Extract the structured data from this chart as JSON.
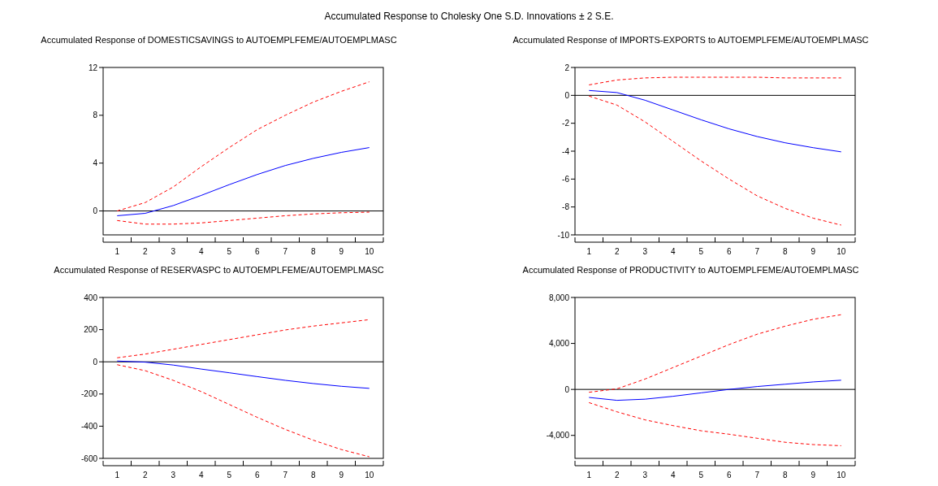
{
  "chart_data": [
    {
      "type": "line",
      "title": "Accumulated Response of DOMESTICSAVINGS to AUTOEMPLFEME/AUTOEMPLMASC",
      "annotations": [
        "Accumulated Response to Cholesky One S.D. Innovations ± 2 S.E."
      ],
      "categories": [
        "1",
        "2",
        "3",
        "4",
        "5",
        "6",
        "7",
        "8",
        "9",
        "10"
      ],
      "ylim": [
        -2,
        12
      ],
      "yticks": [
        0,
        4,
        8,
        12
      ],
      "grid": false,
      "ref_lines": [
        {
          "axis": "y",
          "value": 0,
          "color": "#000000"
        }
      ],
      "series": [
        {
          "color": "#0000ff",
          "line_style": "solid",
          "values": [
            -0.4,
            -0.2,
            0.45,
            1.3,
            2.2,
            3.05,
            3.8,
            4.4,
            4.9,
            5.3
          ]
        },
        {
          "color": "#ff0000",
          "line_style": "dashed",
          "values": [
            0,
            0.7,
            2.0,
            3.7,
            5.3,
            6.8,
            8.0,
            9.1,
            10.0,
            10.8
          ]
        },
        {
          "color": "#ff0000",
          "line_style": "dashed",
          "values": [
            -0.8,
            -1.1,
            -1.1,
            -1.0,
            -0.8,
            -0.6,
            -0.4,
            -0.25,
            -0.15,
            -0.1
          ]
        }
      ]
    },
    {
      "type": "line",
      "title": "Accumulated Response of IMPORTS-EXPORTS to AUTOEMPLFEME/AUTOEMPLMASC",
      "categories": [
        "1",
        "2",
        "3",
        "4",
        "5",
        "6",
        "7",
        "8",
        "9",
        "10"
      ],
      "ylim": [
        -10,
        2
      ],
      "yticks": [
        -10,
        -8,
        -6,
        -4,
        -2,
        0,
        2
      ],
      "grid": false,
      "ref_lines": [
        {
          "axis": "y",
          "value": 0,
          "color": "#000000"
        }
      ],
      "series": [
        {
          "color": "#0000ff",
          "line_style": "solid",
          "values": [
            0.35,
            0.2,
            -0.35,
            -1.05,
            -1.75,
            -2.4,
            -2.95,
            -3.4,
            -3.75,
            -4.05
          ]
        },
        {
          "color": "#ff0000",
          "line_style": "dashed",
          "values": [
            0.75,
            1.1,
            1.25,
            1.3,
            1.3,
            1.3,
            1.3,
            1.25,
            1.25,
            1.25
          ]
        },
        {
          "color": "#ff0000",
          "line_style": "dashed",
          "values": [
            -0.05,
            -0.7,
            -1.9,
            -3.3,
            -4.7,
            -6.0,
            -7.2,
            -8.1,
            -8.8,
            -9.3
          ]
        }
      ]
    },
    {
      "type": "line",
      "title": "Accumulated Response of RESERVASPC to AUTOEMPLFEME/AUTOEMPLMASC",
      "categories": [
        "1",
        "2",
        "3",
        "4",
        "5",
        "6",
        "7",
        "8",
        "9",
        "10"
      ],
      "ylim": [
        -600,
        400
      ],
      "yticks": [
        -600,
        -400,
        -200,
        0,
        200,
        400
      ],
      "grid": false,
      "ref_lines": [
        {
          "axis": "y",
          "value": 0,
          "color": "#000000"
        }
      ],
      "series": [
        {
          "color": "#0000ff",
          "line_style": "solid",
          "values": [
            5,
            -2,
            -20,
            -45,
            -68,
            -92,
            -115,
            -135,
            -152,
            -165
          ]
        },
        {
          "color": "#ff0000",
          "line_style": "dashed",
          "values": [
            25,
            48,
            78,
            108,
            138,
            168,
            198,
            222,
            242,
            262
          ]
        },
        {
          "color": "#ff0000",
          "line_style": "dashed",
          "values": [
            -18,
            -55,
            -115,
            -185,
            -265,
            -345,
            -420,
            -487,
            -545,
            -590
          ]
        }
      ]
    },
    {
      "type": "line",
      "title": "Accumulated Response of PRODUCTIVITY to AUTOEMPLFEME/AUTOEMPLMASC",
      "categories": [
        "1",
        "2",
        "3",
        "4",
        "5",
        "6",
        "7",
        "8",
        "9",
        "10"
      ],
      "ylim": [
        -6000,
        8000
      ],
      "yticks": [
        {
          "value": -4000,
          "label": "-4,000"
        },
        0,
        {
          "value": 4000,
          "label": "4,000"
        },
        {
          "value": 8000,
          "label": "8,000"
        }
      ],
      "grid": false,
      "ref_lines": [
        {
          "axis": "y",
          "value": 0,
          "color": "#000000"
        }
      ],
      "series": [
        {
          "color": "#0000ff",
          "line_style": "solid",
          "values": [
            -700,
            -950,
            -850,
            -600,
            -300,
            0,
            250,
            450,
            650,
            800
          ]
        },
        {
          "color": "#ff0000",
          "line_style": "dashed",
          "values": [
            -250,
            50,
            900,
            1900,
            2900,
            3900,
            4800,
            5500,
            6100,
            6500
          ]
        },
        {
          "color": "#ff0000",
          "line_style": "dashed",
          "values": [
            -1150,
            -1950,
            -2650,
            -3150,
            -3600,
            -3900,
            -4250,
            -4600,
            -4800,
            -4900
          ]
        }
      ]
    }
  ]
}
